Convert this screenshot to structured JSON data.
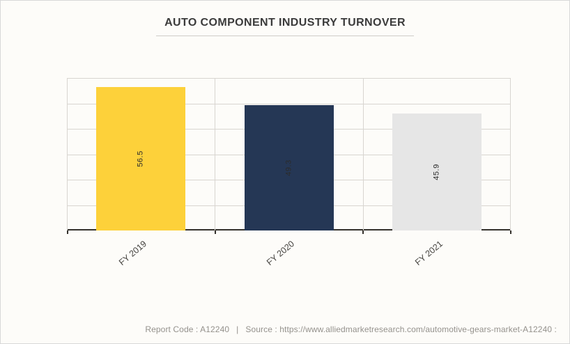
{
  "page": {
    "background": "#FDFCF9",
    "border_color": "#D8D8D8"
  },
  "header": {
    "title": "AUTO COMPONENT INDUSTRY TURNOVER"
  },
  "chart_data": {
    "type": "bar",
    "title": "AUTO COMPONENT INDUSTRY TURNOVER",
    "categories": [
      "FY 2019",
      "FY 2020",
      "FY 2021"
    ],
    "values": [
      56.5,
      49.3,
      45.9
    ],
    "value_labels": [
      "56.5",
      "49.3",
      "45.9"
    ],
    "bar_colors": [
      "#FDD13A",
      "#253755",
      "#E6E6E6"
    ],
    "value_label_color": "#2B2B2B",
    "ylim": [
      0,
      60
    ],
    "gridline_step": 10,
    "grid": "horizontal bands plus category boundary verticals",
    "y_tick_labels_visible": false,
    "legend": "none",
    "xlabel": "",
    "ylabel": "",
    "x_tick_rotation_deg": -40,
    "value_label_rotation_deg": -90,
    "gridline_color": "#D8D5D0",
    "axis_color": "#34312C"
  },
  "footer": {
    "report_code": "Report Code : A12240",
    "separator": "|",
    "source": "Source : https://www.alliedmarketresearch.com/automotive-gears-market-A12240 :"
  }
}
